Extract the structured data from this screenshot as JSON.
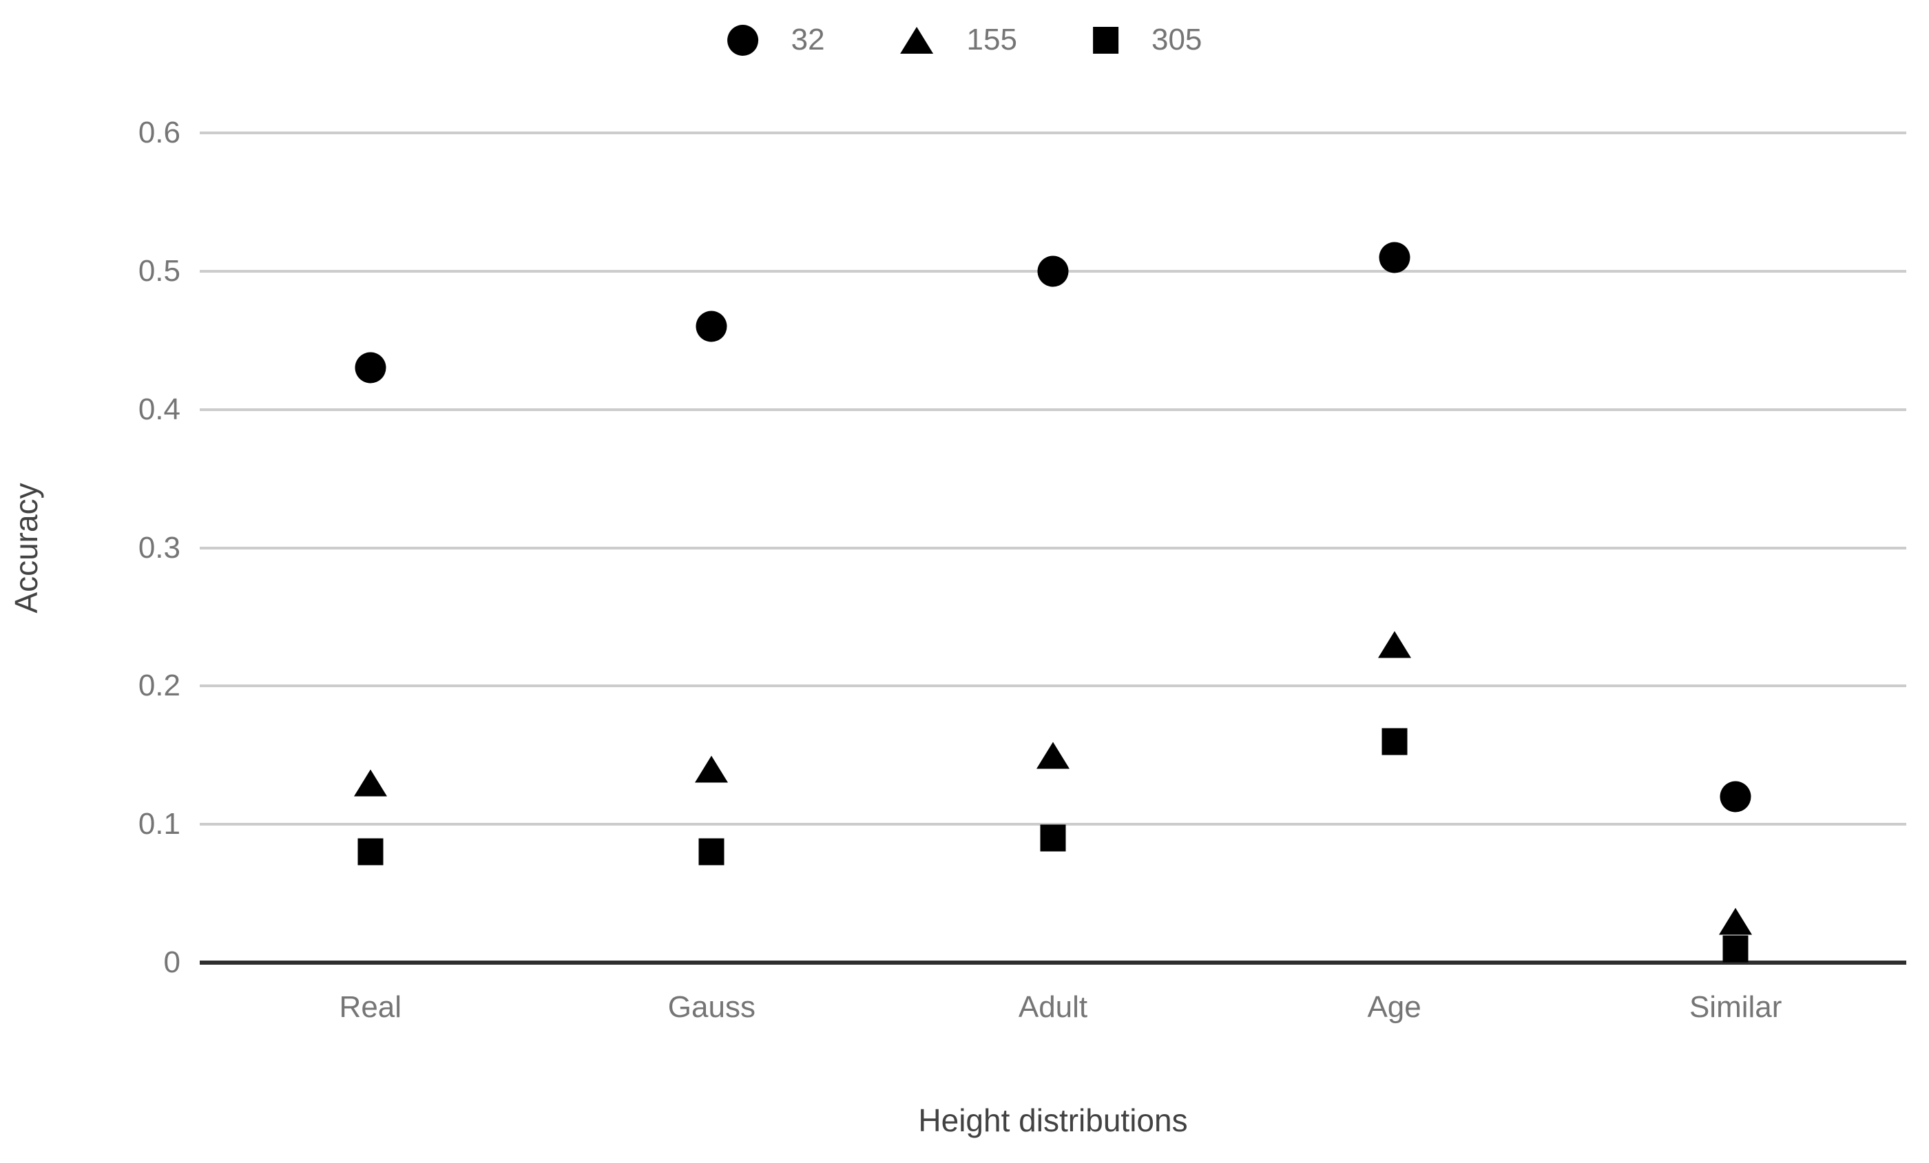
{
  "chart_data": {
    "type": "scatter",
    "title": "",
    "xlabel": "Height distributions",
    "ylabel": "Accuracy",
    "categories": [
      "Real",
      "Gauss",
      "Adult",
      "Age",
      "Similar"
    ],
    "series": [
      {
        "name": "32",
        "marker": "circle",
        "values": [
          0.43,
          0.46,
          0.5,
          0.51,
          0.12
        ]
      },
      {
        "name": "155",
        "marker": "triangle",
        "values": [
          0.13,
          0.14,
          0.15,
          0.23,
          0.03
        ]
      },
      {
        "name": "305",
        "marker": "square",
        "values": [
          0.08,
          0.08,
          0.09,
          0.16,
          0.01
        ]
      }
    ],
    "ylim": [
      0,
      0.6
    ],
    "y_ticks": [
      0,
      0.1,
      0.2,
      0.3,
      0.4,
      0.5,
      0.6
    ],
    "y_tick_labels": [
      "0",
      "0.1",
      "0.2",
      "0.3",
      "0.4",
      "0.5",
      "0.6"
    ],
    "grid": true,
    "legend_position": "top-center",
    "colors": {
      "marker": "#000000",
      "gridline": "#cccccc",
      "axis_line": "#2e2e2e",
      "tick_text": "#757575",
      "axis_title_text": "#424242",
      "background": "#ffffff"
    }
  }
}
